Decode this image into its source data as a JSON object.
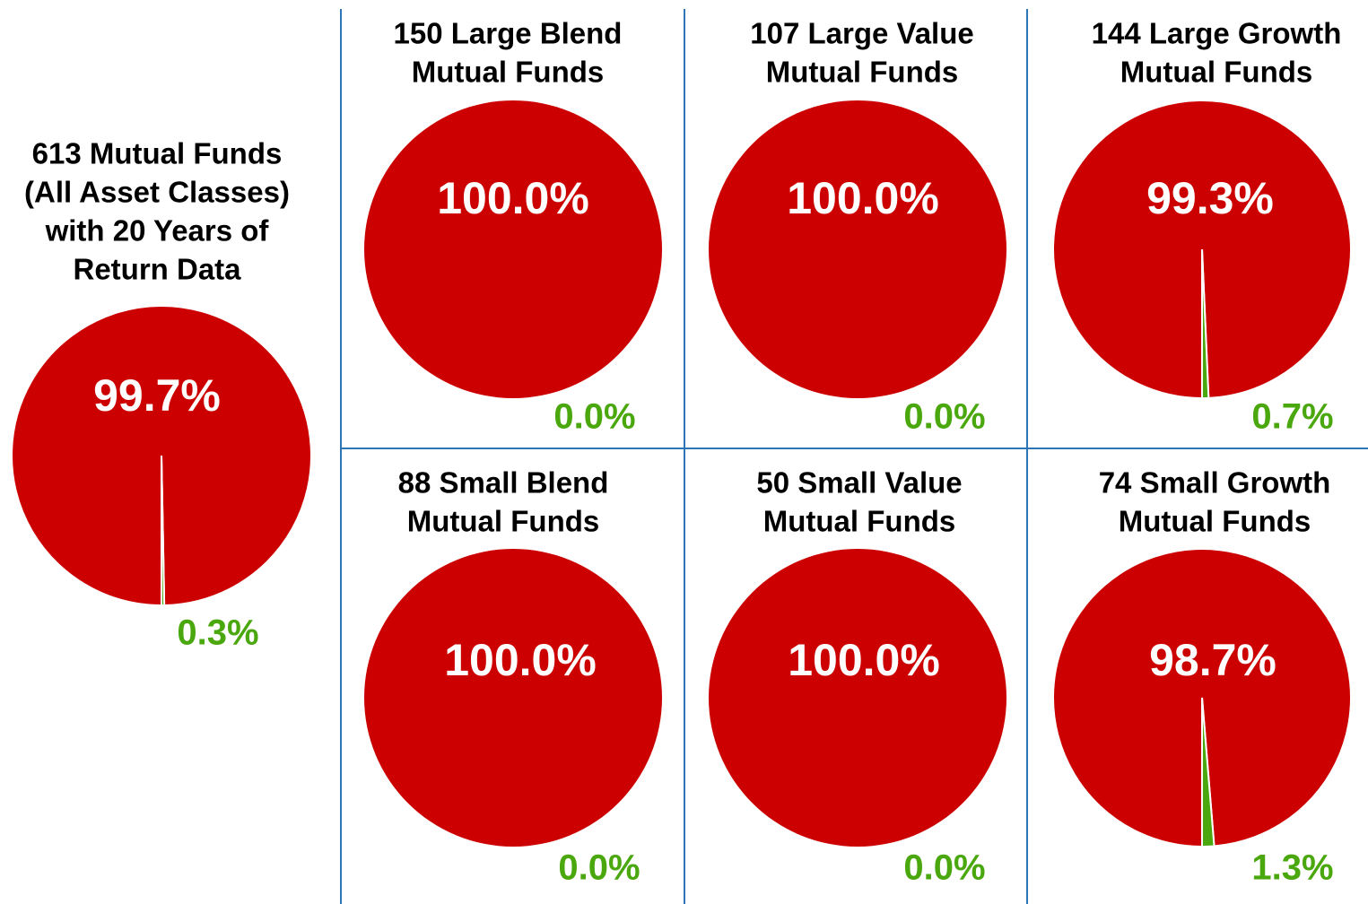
{
  "chart_data": [
    {
      "type": "pie",
      "title": [
        "613 Mutual Funds",
        "(All Asset Classes)",
        "with 20 Years of",
        "Return Data"
      ],
      "values": [
        99.7,
        0.3
      ],
      "value_labels": [
        "99.7%",
        "0.3%"
      ],
      "colors": [
        "#cc0000",
        "#4aa80e"
      ]
    },
    {
      "type": "pie",
      "title": [
        "150 Large Blend",
        "Mutual Funds"
      ],
      "values": [
        100.0,
        0.0
      ],
      "value_labels": [
        "100.0%",
        "0.0%"
      ],
      "colors": [
        "#cc0000",
        "#4aa80e"
      ]
    },
    {
      "type": "pie",
      "title": [
        "107 Large Value",
        "Mutual Funds"
      ],
      "values": [
        100.0,
        0.0
      ],
      "value_labels": [
        "100.0%",
        "0.0%"
      ],
      "colors": [
        "#cc0000",
        "#4aa80e"
      ]
    },
    {
      "type": "pie",
      "title": [
        "144 Large Growth",
        "Mutual Funds"
      ],
      "values": [
        99.3,
        0.7
      ],
      "value_labels": [
        "99.3%",
        "0.7%"
      ],
      "colors": [
        "#cc0000",
        "#4aa80e"
      ]
    },
    {
      "type": "pie",
      "title": [
        "88 Small Blend",
        "Mutual Funds"
      ],
      "values": [
        100.0,
        0.0
      ],
      "value_labels": [
        "100.0%",
        "0.0%"
      ],
      "colors": [
        "#cc0000",
        "#4aa80e"
      ]
    },
    {
      "type": "pie",
      "title": [
        "50 Small Value",
        "Mutual Funds"
      ],
      "values": [
        100.0,
        0.0
      ],
      "value_labels": [
        "100.0%",
        "0.0%"
      ],
      "colors": [
        "#cc0000",
        "#4aa80e"
      ]
    },
    {
      "type": "pie",
      "title": [
        "74 Small Growth",
        "Mutual Funds"
      ],
      "values": [
        98.7,
        1.3
      ],
      "value_labels": [
        "98.7%",
        "1.3%"
      ],
      "colors": [
        "#cc0000",
        "#4aa80e"
      ]
    }
  ]
}
